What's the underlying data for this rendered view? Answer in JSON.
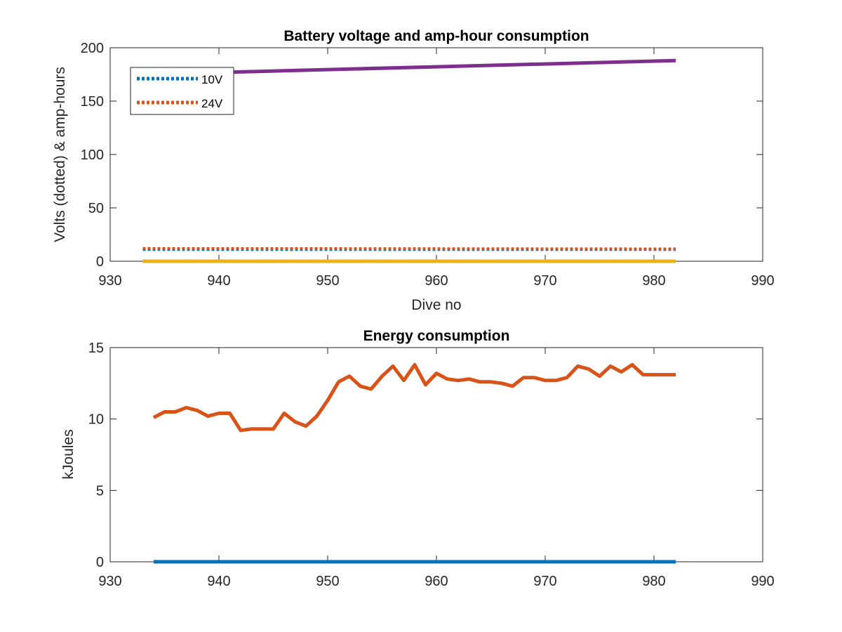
{
  "chart_data": [
    {
      "type": "line",
      "title": "Battery voltage and amp-hour consumption",
      "xlabel": "Dive no",
      "ylabel": "Volts (dotted) & amp-hours",
      "xlim": [
        930,
        990
      ],
      "ylim": [
        0,
        200
      ],
      "xticks": [
        930,
        940,
        950,
        960,
        970,
        980,
        990
      ],
      "yticks": [
        0,
        50,
        100,
        150,
        200
      ],
      "grid": false,
      "legend": "top-left",
      "series": [
        {
          "name": "10V",
          "style": "dotted",
          "color": "#0072BD",
          "x": [
            933,
            982
          ],
          "y": [
            11,
            11
          ]
        },
        {
          "name": "24V",
          "style": "dotted",
          "color": "#D95319",
          "x": [
            933,
            982
          ],
          "y": [
            12,
            11.5
          ]
        },
        {
          "style": "solid",
          "color": "#EDB120",
          "x": [
            933,
            982
          ],
          "y": [
            0,
            0
          ]
        },
        {
          "style": "solid",
          "color": "#7E2F8E",
          "x": [
            933,
            982
          ],
          "y": [
            175,
            188
          ]
        }
      ]
    },
    {
      "type": "line",
      "title": "Energy consumption",
      "xlabel": "",
      "ylabel": "kJoules",
      "xlim": [
        930,
        990
      ],
      "ylim": [
        0,
        15
      ],
      "xticks": [
        930,
        940,
        950,
        960,
        970,
        980,
        990
      ],
      "yticks": [
        0,
        5,
        10,
        15
      ],
      "grid": false,
      "series": [
        {
          "style": "solid",
          "color": "#0072BD",
          "x": [
            934,
            982
          ],
          "y": [
            0,
            0
          ]
        },
        {
          "style": "solid",
          "color": "#D95319",
          "x": [
            934,
            935,
            936,
            937,
            938,
            939,
            940,
            941,
            942,
            943,
            944,
            945,
            946,
            947,
            948,
            949,
            950,
            951,
            952,
            953,
            954,
            955,
            956,
            957,
            958,
            959,
            960,
            961,
            962,
            963,
            964,
            965,
            966,
            967,
            968,
            969,
            970,
            971,
            972,
            973,
            974,
            975,
            976,
            977,
            978,
            979,
            980,
            981,
            982
          ],
          "y": [
            10.1,
            10.5,
            10.5,
            10.8,
            10.6,
            10.2,
            10.4,
            10.4,
            9.2,
            9.3,
            9.3,
            9.3,
            10.4,
            9.8,
            9.5,
            10.2,
            11.3,
            12.6,
            13.0,
            12.3,
            12.1,
            13.0,
            13.7,
            12.7,
            13.8,
            12.4,
            13.2,
            12.8,
            12.7,
            12.8,
            12.6,
            12.6,
            12.5,
            12.3,
            12.9,
            12.9,
            12.7,
            12.7,
            12.9,
            13.7,
            13.5,
            13.0,
            13.7,
            13.3,
            13.8,
            13.1,
            13.1,
            13.1,
            13.1
          ]
        }
      ]
    }
  ]
}
